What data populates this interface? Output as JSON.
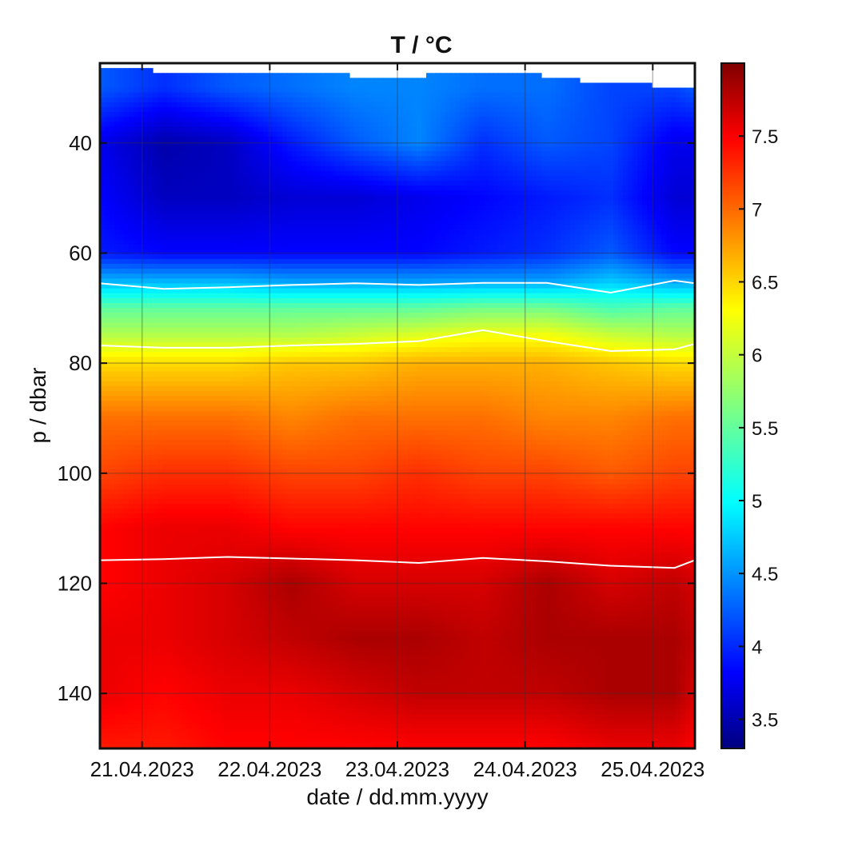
{
  "chart_data": {
    "type": "heatmap",
    "title": "T / °C",
    "xlabel": "date / dd.mm.yyyy",
    "ylabel": "p / dbar",
    "x_ticks": [
      "21.04.2023",
      "22.04.2023",
      "23.04.2023",
      "24.04.2023",
      "25.04.2023"
    ],
    "x_tick_days": [
      0,
      1,
      2,
      3,
      4
    ],
    "xlim_days": [
      -0.33,
      4.33
    ],
    "y_ticks": [
      40,
      60,
      80,
      100,
      120,
      140
    ],
    "ylim": [
      25.5,
      150
    ],
    "y_reversed": true,
    "grid": true,
    "colorbar": {
      "colormap": "jet",
      "ticks": [
        "3.5",
        "4",
        "4.5",
        "5",
        "5.5",
        "6",
        "6.5",
        "7",
        "7.5"
      ],
      "tick_values": [
        3.5,
        4,
        4.5,
        5,
        5.5,
        6,
        6.5,
        7,
        7.5
      ],
      "clim": [
        3.3,
        8.0
      ]
    },
    "profile_x_days": [
      -0.33,
      0.17,
      0.67,
      1.17,
      1.67,
      2.17,
      2.67,
      3.17,
      3.67,
      4.17,
      4.33
    ],
    "surface_p": [
      26.2,
      27.0,
      27.3,
      27.1,
      27.8,
      27.8,
      27.0,
      27.8,
      29.3,
      29.6,
      29.7
    ],
    "profile_p": [
      30,
      40,
      50,
      60,
      65,
      70,
      75,
      80,
      90,
      100,
      110,
      120,
      130,
      140,
      150
    ],
    "profiles": [
      [
        4.3,
        3.8,
        3.9,
        4.0,
        4.7,
        5.5,
        5.9,
        6.4,
        6.9,
        7.1,
        7.4,
        7.4,
        7.5,
        7.5,
        7.3
      ],
      [
        4.1,
        3.5,
        3.6,
        3.9,
        4.7,
        5.5,
        5.9,
        6.4,
        6.9,
        7.2,
        7.5,
        7.5,
        7.5,
        7.4,
        7.3
      ],
      [
        4.3,
        3.6,
        3.6,
        3.9,
        4.7,
        5.5,
        5.9,
        6.4,
        6.9,
        7.2,
        7.5,
        7.6,
        7.6,
        7.5,
        7.4
      ],
      [
        4.4,
        4.0,
        3.7,
        3.9,
        4.6,
        5.5,
        5.9,
        6.5,
        6.8,
        7.1,
        7.4,
        7.8,
        7.7,
        7.5,
        7.4
      ],
      [
        4.5,
        4.3,
        3.7,
        3.9,
        4.6,
        5.5,
        6.0,
        6.5,
        6.9,
        7.1,
        7.4,
        7.6,
        7.8,
        7.6,
        7.4
      ],
      [
        4.5,
        4.5,
        3.8,
        3.9,
        4.6,
        5.5,
        6.1,
        6.6,
        6.9,
        7.2,
        7.4,
        7.6,
        7.8,
        7.7,
        7.4
      ],
      [
        4.4,
        4.1,
        3.9,
        4.0,
        4.6,
        5.6,
        6.2,
        6.6,
        6.9,
        7.1,
        7.4,
        7.6,
        7.7,
        7.7,
        7.4
      ],
      [
        4.4,
        4.3,
        4.0,
        4.1,
        4.6,
        5.6,
        6.2,
        6.6,
        6.8,
        7.1,
        7.4,
        7.8,
        7.8,
        7.7,
        7.4
      ],
      [
        4.2,
        4.2,
        4.1,
        4.3,
        4.8,
        5.4,
        6.0,
        6.5,
        6.8,
        7.0,
        7.4,
        7.6,
        7.8,
        7.8,
        7.5
      ],
      [
        4.2,
        3.8,
        3.7,
        3.9,
        4.6,
        5.5,
        5.9,
        6.4,
        6.9,
        7.1,
        7.4,
        7.7,
        7.8,
        7.8,
        7.5
      ],
      [
        4.3,
        3.8,
        3.7,
        3.9,
        4.6,
        5.5,
        5.9,
        6.4,
        6.9,
        7.1,
        7.4,
        7.6,
        7.7,
        7.6,
        7.4
      ]
    ],
    "white_contours": [
      [
        65.5,
        66.5,
        66.2,
        65.8,
        65.5,
        65.8,
        65.4,
        65.4,
        67.2,
        65.0,
        65.5
      ],
      [
        76.8,
        77.2,
        77.2,
        76.8,
        76.5,
        76.0,
        74.0,
        76.0,
        77.8,
        77.5,
        76.5
      ],
      [
        115.8,
        115.6,
        115.2,
        115.5,
        115.8,
        116.3,
        115.4,
        116.0,
        116.8,
        117.2,
        115.8
      ]
    ]
  }
}
